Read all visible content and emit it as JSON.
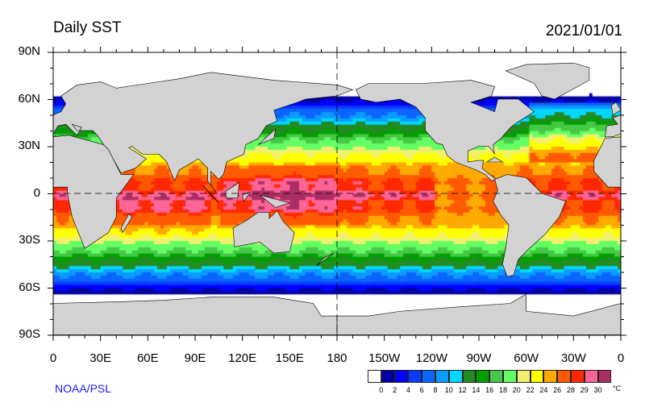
{
  "title": "Daily SST",
  "date": "2021/01/01",
  "credit": "NOAA/PSL",
  "lat_labels": [
    "90N",
    "60N",
    "30N",
    "0",
    "30S",
    "60S",
    "90S"
  ],
  "lon_labels": [
    "0",
    "30E",
    "60E",
    "90E",
    "120E",
    "150E",
    "180",
    "150W",
    "120W",
    "90W",
    "60W",
    "30W",
    "0"
  ],
  "colorbar": {
    "labels": [
      "0",
      "2",
      "4",
      "6",
      "8",
      "10",
      "12",
      "14",
      "16",
      "18",
      "20",
      "22",
      "24",
      "26",
      "28",
      "29",
      "30"
    ],
    "unit": "°C",
    "colors": [
      "#ffffff",
      "#0000a0",
      "#0000ff",
      "#0a3cff",
      "#0a64ff",
      "#0a9bff",
      "#00d7ff",
      "#228b22",
      "#00a000",
      "#46c846",
      "#64ff64",
      "#f0f06e",
      "#ffff00",
      "#ffaa00",
      "#ff5a00",
      "#ff2800",
      "#ff6496",
      "#aa2d64"
    ]
  },
  "land_color": "#d2d2d2"
}
